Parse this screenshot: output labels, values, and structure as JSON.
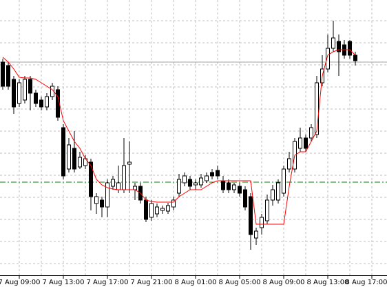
{
  "chart_data": {
    "type": "candlestick",
    "categories": [
      null,
      null,
      null,
      "7 Aug 09:00",
      null,
      null,
      null,
      null,
      null,
      null,
      null,
      "7 Aug 13:00",
      null,
      null,
      null,
      null,
      null,
      null,
      null,
      "7 Aug 17:00",
      null,
      null,
      null,
      null,
      null,
      null,
      null,
      "7 Aug 21:00",
      null,
      null,
      null,
      null,
      null,
      null,
      null,
      "8 Aug 01:00",
      null,
      null,
      null,
      null,
      null,
      null,
      null,
      "8 Aug 05:00",
      null,
      null,
      null,
      null,
      null,
      null,
      null,
      "8 Aug 09:00",
      null,
      null,
      null,
      null,
      null,
      null,
      null,
      "8 Aug 13:00",
      null,
      null,
      null,
      null,
      null,
      null,
      null,
      "8 Aug 17:00"
    ],
    "open": [
      310,
      305,
      285,
      250,
      255,
      285,
      265,
      255,
      245,
      260,
      270,
      215,
      155,
      185,
      158,
      160,
      165,
      105,
      110,
      100,
      130,
      125,
      125,
      162,
      125,
      130,
      110,
      85,
      90,
      95,
      94,
      100,
      120,
      135,
      140,
      132,
      132,
      138,
      150,
      153,
      138,
      135,
      125,
      130,
      125,
      115,
      55,
      70,
      80,
      110,
      110,
      120,
      155,
      155,
      185,
      200,
      200,
      205,
      280,
      300,
      330,
      340,
      335,
      340,
      320,
      null,
      null,
      null
    ],
    "high": [
      315,
      310,
      290,
      285,
      290,
      290,
      270,
      260,
      265,
      280,
      275,
      220,
      200,
      210,
      180,
      175,
      170,
      120,
      115,
      140,
      145,
      160,
      200,
      195,
      135,
      135,
      115,
      110,
      105,
      102,
      106,
      115,
      148,
      150,
      145,
      140,
      148,
      150,
      155,
      160,
      145,
      140,
      135,
      135,
      130,
      120,
      70,
      90,
      118,
      132,
      140,
      160,
      180,
      200,
      215,
      205,
      220,
      290,
      320,
      350,
      370,
      350,
      342,
      342,
      325,
      null,
      null,
      null
    ],
    "low": [
      270,
      270,
      235,
      245,
      250,
      240,
      245,
      240,
      240,
      255,
      225,
      140,
      150,
      150,
      155,
      155,
      95,
      90,
      85,
      85,
      125,
      120,
      120,
      120,
      110,
      105,
      78,
      80,
      85,
      90,
      90,
      95,
      115,
      130,
      125,
      125,
      128,
      135,
      140,
      140,
      120,
      120,
      120,
      115,
      95,
      38,
      45,
      60,
      75,
      102,
      105,
      115,
      150,
      150,
      180,
      180,
      195,
      200,
      275,
      295,
      325,
      290,
      315,
      315,
      305,
      null,
      null,
      null
    ],
    "close": [
      275,
      275,
      245,
      280,
      285,
      265,
      250,
      245,
      260,
      275,
      230,
      145,
      190,
      155,
      172,
      170,
      115,
      115,
      100,
      135,
      140,
      135,
      160,
      165,
      130,
      110,
      82,
      105,
      100,
      98,
      102,
      110,
      140,
      145,
      130,
      135,
      142,
      145,
      145,
      145,
      125,
      125,
      132,
      120,
      100,
      60,
      65,
      85,
      110,
      125,
      135,
      155,
      170,
      195,
      200,
      185,
      215,
      280,
      300,
      330,
      345,
      325,
      320,
      320,
      312,
      null,
      null,
      null
    ],
    "bull_color": "#ffffff",
    "bear_color": "#000000",
    "outline_color": "#000000",
    "line_values": [
      317,
      310,
      300,
      288,
      287,
      287,
      285,
      280,
      275,
      270,
      260,
      225,
      210,
      195,
      185,
      170,
      160,
      140,
      132,
      128,
      126,
      125,
      125,
      125,
      125,
      120,
      110,
      108,
      107,
      107,
      107,
      107,
      115,
      120,
      125,
      125,
      125,
      130,
      135,
      138,
      138,
      138,
      138,
      138,
      138,
      138,
      75,
      75,
      75,
      75,
      75,
      75,
      130,
      175,
      180,
      180,
      195,
      210,
      290,
      320,
      325,
      328,
      328,
      328,
      320,
      null,
      null,
      null
    ],
    "line_color": "#ff0000",
    "level": 136,
    "level_color": "#008000",
    "price_line": 310,
    "price_line_color": "#a0a0a0",
    "ylim": [
      0,
      400
    ],
    "ygrid": [
      18,
      50,
      82,
      114,
      146,
      178,
      210,
      242,
      274,
      306,
      338,
      370
    ],
    "grid": true
  }
}
